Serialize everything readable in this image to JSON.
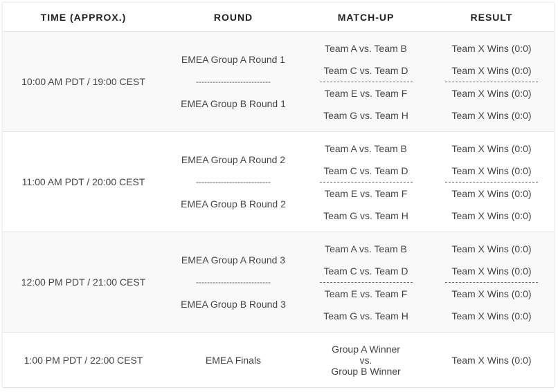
{
  "headers": [
    "TIME (APPROX.)",
    "ROUND",
    "MATCH-UP",
    "RESULT"
  ],
  "round_separator": "---------------------------",
  "rows": [
    {
      "time": "10:00 AM PDT / 19:00 CEST",
      "round_a": "EMEA Group A Round 1",
      "round_b": "EMEA Group B Round 1",
      "matches": [
        "Team A vs. Team B",
        "Team C vs. Team D",
        "Team E vs. Team F",
        "Team G vs. Team H"
      ],
      "results": [
        "Team X Wins (0:0)",
        "Team X Wins (0:0)",
        "Team X Wins (0:0)",
        "Team X Wins (0:0)"
      ]
    },
    {
      "time": "11:00 AM PDT / 20:00 CEST",
      "round_a": "EMEA Group A Round 2",
      "round_b": "EMEA Group B Round 2",
      "matches": [
        "Team A vs. Team B",
        "Team C vs. Team D",
        "Team E vs. Team F",
        "Team G vs. Team H"
      ],
      "results": [
        "Team X Wins (0:0)",
        "Team X Wins (0:0)",
        "Team X Wins (0:0)",
        "Team X Wins (0:0)"
      ]
    },
    {
      "time": "12:00 PM PDT / 21:00 CEST",
      "round_a": "EMEA Group A Round 3",
      "round_b": "EMEA Group B Round 3",
      "matches": [
        "Team A vs. Team B",
        "Team C vs. Team D",
        "Team E vs. Team F",
        "Team G vs. Team H"
      ],
      "results": [
        "Team X Wins (0:0)",
        "Team X Wins (0:0)",
        "Team X Wins (0:0)",
        "Team X Wins (0:0)"
      ]
    }
  ],
  "final": {
    "time": "1:00 PM PDT / 22:00 CEST",
    "round": "EMEA Finals",
    "match_line1": "Group A Winner",
    "match_line2": "vs.",
    "match_line3": "Group B Winner",
    "result": "Team X Wins (0:0)"
  },
  "colors": {
    "row_shade": "#f9f9f9",
    "border": "#e2e2e2",
    "text": "#444444"
  }
}
